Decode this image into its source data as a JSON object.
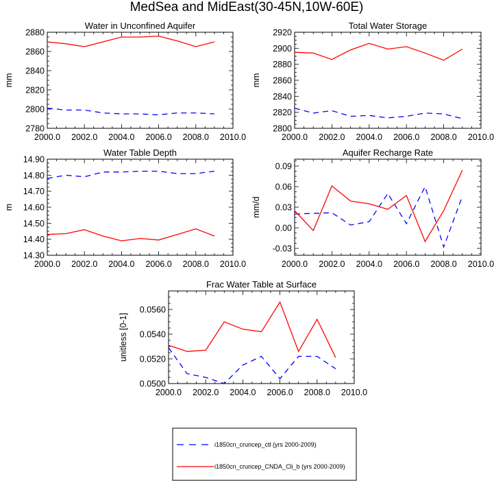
{
  "figure_title": "MedSea and MidEast(30-45N,10W-60E)",
  "colors": {
    "ctl": "#0000ff",
    "cnda": "#ff0000",
    "axis": "#000000",
    "background": "#ffffff"
  },
  "legend": {
    "entries": [
      {
        "key": "ctl",
        "label": "i1850cn_cruncep_ctl (yrs 2000-2009)",
        "color": "#0000ff",
        "dash": "dashed"
      },
      {
        "key": "cnda",
        "label": "i1850cn_cruncep_CNDA_Cli_b (yrs 2000-2009)",
        "color": "#ff0000",
        "dash": "solid"
      }
    ]
  },
  "chart_data": [
    {
      "id": "unconfined-aquifer",
      "type": "line",
      "title": "Water in Unconfined Aquifer",
      "ylabel": "mm",
      "xlim": [
        2000,
        2010
      ],
      "ylim": [
        2780,
        2880
      ],
      "xticks": [
        2000,
        2002,
        2004,
        2006,
        2008,
        2010
      ],
      "xtick_labels": [
        "2000.0",
        "2002.0",
        "2004.0",
        "2006.0",
        "2008.0",
        "2010.0"
      ],
      "yticks": [
        2780,
        2800,
        2820,
        2840,
        2860,
        2880
      ],
      "ytick_labels": [
        "2780",
        "2800",
        "2820",
        "2840",
        "2860",
        "2880"
      ],
      "x": [
        2000,
        2001,
        2002,
        2003,
        2004,
        2005,
        2006,
        2007,
        2008,
        2009
      ],
      "series": [
        {
          "key": "ctl",
          "values": [
            2801,
            2799,
            2799,
            2796,
            2795,
            2795,
            2794,
            2796,
            2796,
            2795
          ]
        },
        {
          "key": "cnda",
          "values": [
            2870,
            2868,
            2865,
            2870,
            2875,
            2875,
            2876,
            2871,
            2865,
            2870
          ]
        }
      ]
    },
    {
      "id": "total-water-storage",
      "type": "line",
      "title": "Total Water Storage",
      "ylabel": "mm",
      "xlim": [
        2000,
        2010
      ],
      "ylim": [
        2800,
        2920
      ],
      "xticks": [
        2000,
        2002,
        2004,
        2006,
        2008,
        2010
      ],
      "xtick_labels": [
        "2000.0",
        "2002.0",
        "2004.0",
        "2006.0",
        "2008.0",
        "2010.0"
      ],
      "yticks": [
        2800,
        2820,
        2840,
        2860,
        2880,
        2900,
        2920
      ],
      "ytick_labels": [
        "2800",
        "2820",
        "2840",
        "2860",
        "2880",
        "2900",
        "2920"
      ],
      "x": [
        2000,
        2001,
        2002,
        2003,
        2004,
        2005,
        2006,
        2007,
        2008,
        2009
      ],
      "series": [
        {
          "key": "ctl",
          "values": [
            2825,
            2819,
            2822,
            2815,
            2816,
            2813,
            2815,
            2819,
            2818,
            2812
          ]
        },
        {
          "key": "cnda",
          "values": [
            2895,
            2894,
            2886,
            2898,
            2906,
            2899,
            2902,
            2894,
            2885,
            2899
          ]
        }
      ]
    },
    {
      "id": "water-table-depth",
      "type": "line",
      "title": "Water Table Depth",
      "ylabel": "m",
      "xlim": [
        2000,
        2010
      ],
      "ylim": [
        14.3,
        14.9
      ],
      "xticks": [
        2000,
        2002,
        2004,
        2006,
        2008,
        2010
      ],
      "xtick_labels": [
        "2000.0",
        "2002.0",
        "2004.0",
        "2006.0",
        "2008.0",
        "2010.0"
      ],
      "yticks": [
        14.3,
        14.4,
        14.5,
        14.6,
        14.7,
        14.8,
        14.9
      ],
      "ytick_labels": [
        "14.30",
        "14.40",
        "14.50",
        "14.60",
        "14.70",
        "14.80",
        "14.90"
      ],
      "x": [
        2000,
        2001,
        2002,
        2003,
        2004,
        2005,
        2006,
        2007,
        2008,
        2009
      ],
      "series": [
        {
          "key": "ctl",
          "values": [
            14.78,
            14.8,
            14.79,
            14.82,
            14.82,
            14.825,
            14.825,
            14.81,
            14.81,
            14.825
          ]
        },
        {
          "key": "cnda",
          "values": [
            14.43,
            14.435,
            14.46,
            14.42,
            14.39,
            14.405,
            14.395,
            14.43,
            14.465,
            14.42
          ]
        }
      ]
    },
    {
      "id": "aquifer-recharge-rate",
      "type": "line",
      "title": "Aquifer Recharge Rate",
      "ylabel": "mm/d",
      "xlim": [
        2000,
        2010
      ],
      "ylim": [
        -0.04,
        0.1
      ],
      "xticks": [
        2000,
        2002,
        2004,
        2006,
        2008,
        2010
      ],
      "xtick_labels": [
        "2000.0",
        "2002.0",
        "2004.0",
        "2006.0",
        "2008.0",
        "2010.0"
      ],
      "yticks": [
        -0.03,
        0.0,
        0.03,
        0.06,
        0.09
      ],
      "ytick_labels": [
        "-0.03",
        "0.00",
        "0.03",
        "0.06",
        "0.09"
      ],
      "x": [
        2000,
        2001,
        2002,
        2003,
        2004,
        2005,
        2006,
        2007,
        2008,
        2009
      ],
      "series": [
        {
          "key": "ctl",
          "values": [
            0.02,
            0.021,
            0.022,
            0.004,
            0.009,
            0.05,
            0.006,
            0.06,
            -0.028,
            0.046
          ]
        },
        {
          "key": "cnda",
          "values": [
            0.025,
            -0.004,
            0.061,
            0.039,
            0.035,
            0.027,
            0.047,
            -0.02,
            0.025,
            0.084
          ]
        }
      ]
    },
    {
      "id": "frac-water-table-surface",
      "type": "line",
      "title": "Frac Water Table at Surface",
      "ylabel": "unitless [0-1]",
      "xlim": [
        2000,
        2010
      ],
      "ylim": [
        0.05,
        0.0575
      ],
      "xticks": [
        2000,
        2002,
        2004,
        2006,
        2008,
        2010
      ],
      "xtick_labels": [
        "2000.0",
        "2002.0",
        "2004.0",
        "2006.0",
        "2008.0",
        "2010.0"
      ],
      "yticks": [
        0.05,
        0.052,
        0.054,
        0.056
      ],
      "ytick_labels": [
        "0.0500",
        "0.0520",
        "0.0540",
        "0.0560"
      ],
      "x": [
        2000,
        2001,
        2002,
        2003,
        2004,
        2005,
        2006,
        2007,
        2008,
        2009
      ],
      "series": [
        {
          "key": "ctl",
          "values": [
            0.0529,
            0.0508,
            0.0505,
            0.05,
            0.0515,
            0.0522,
            0.0504,
            0.0522,
            0.0522,
            0.0512
          ]
        },
        {
          "key": "cnda",
          "values": [
            0.0531,
            0.0526,
            0.0527,
            0.055,
            0.0544,
            0.0542,
            0.0566,
            0.0526,
            0.0552,
            0.0521
          ]
        }
      ]
    }
  ]
}
